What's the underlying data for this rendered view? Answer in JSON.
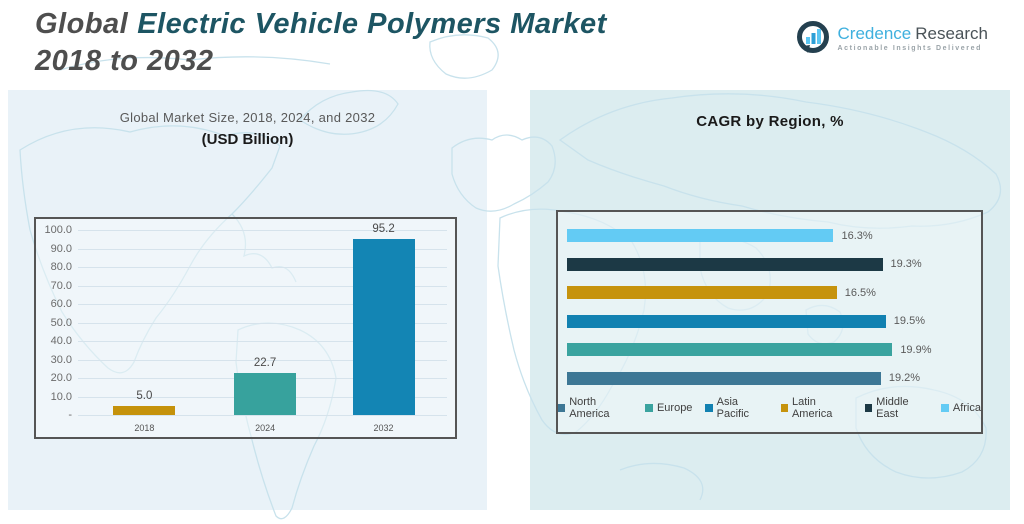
{
  "header": {
    "title_part_gray": "Global",
    "title_part_teal": "Electric Vehicle Polymers Market",
    "title_line2": "2018 to 2032",
    "logo": {
      "brand_primary": "Credence",
      "brand_secondary": "Research",
      "tagline": "Actionable Insights Delivered",
      "icon": "bar-chart-circle-icon"
    }
  },
  "colors": {
    "title_teal": "#1d5563",
    "title_gray": "#4e4e4e",
    "panel_left_bg": "#e9f2f8",
    "panel_right_bg": "#dcedf0",
    "chart_border": "#555555",
    "gridline": "#d6e3ec",
    "logo_blue": "#3fb0de",
    "map_line": "#c8e2ec"
  },
  "chart_data": [
    {
      "type": "bar",
      "title": "Global Market Size, 2018, 2024, and 2032",
      "subtitle": "(USD Billion)",
      "categories": [
        "2018",
        "2024",
        "2032"
      ],
      "values": [
        5.0,
        22.7,
        95.2
      ],
      "value_labels": [
        "5.0",
        "22.7",
        "95.2"
      ],
      "bar_colors": [
        "#c5920b",
        "#37a29d",
        "#1385b4"
      ],
      "ylim": [
        0,
        100
      ],
      "ytick_labels": [
        "100.0",
        "90.0",
        "80.0",
        "70.0",
        "60.0",
        "50.0",
        "40.0",
        "30.0",
        "20.0",
        "10.0",
        "-"
      ],
      "grid": true,
      "legend_position": "none"
    },
    {
      "type": "bar",
      "orientation": "horizontal",
      "title": "CAGR by Region, %",
      "series": [
        {
          "name": "Africa",
          "value": 16.3,
          "label": "16.3%",
          "color": "#63cbf4"
        },
        {
          "name": "Middle East",
          "value": 19.3,
          "label": "19.3%",
          "color": "#1c3945"
        },
        {
          "name": "Latin America",
          "value": 16.5,
          "label": "16.5%",
          "color": "#c6930d"
        },
        {
          "name": "Asia Pacific",
          "value": 19.5,
          "label": "19.5%",
          "color": "#1181b1"
        },
        {
          "name": "Europe",
          "value": 19.9,
          "label": "19.9%",
          "color": "#3aa39f"
        },
        {
          "name": "North America",
          "value": 19.2,
          "label": "19.2%",
          "color": "#3d7795"
        }
      ],
      "xlim": [
        0,
        23
      ],
      "legend": [
        {
          "label": "North America",
          "color": "#3d7795"
        },
        {
          "label": "Europe",
          "color": "#3aa39f"
        },
        {
          "label": "Asia Pacific",
          "color": "#1181b1"
        },
        {
          "label": "Latin America",
          "color": "#c6930d"
        },
        {
          "label": "Middle East",
          "color": "#1c3945"
        },
        {
          "label": "Africa",
          "color": "#63cbf4"
        }
      ],
      "legend_position": "bottom"
    }
  ]
}
